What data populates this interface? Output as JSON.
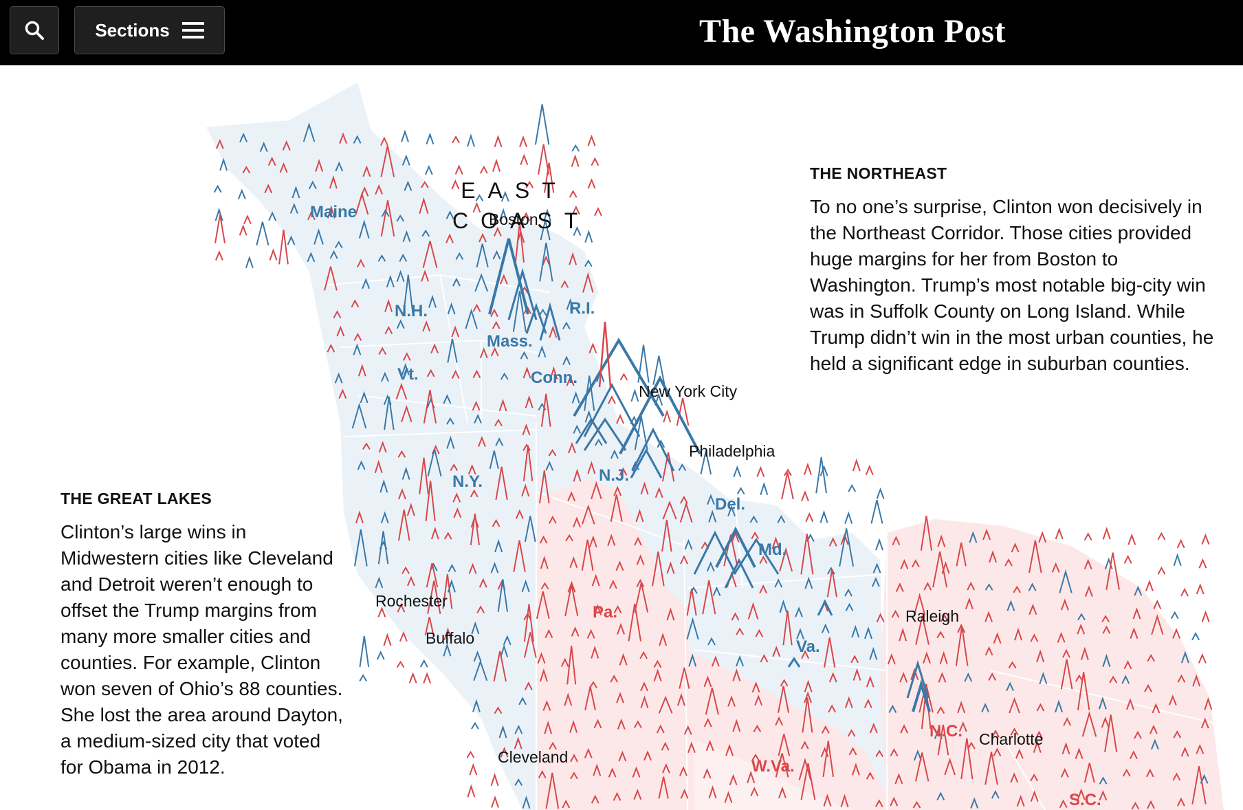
{
  "header": {
    "search_icon": "search-icon",
    "sections_label": "Sections",
    "menu_icon": "hamburger-menu-icon",
    "masthead": "The Washington Post"
  },
  "map": {
    "region_title_line1": "EAST",
    "region_title_line2": "COAST",
    "colors": {
      "clinton": "#3a78a8",
      "trump": "#d8474a",
      "clinton_fill": "#eaf2f8",
      "trump_fill": "#fce8e8",
      "border": "#ffffff"
    },
    "states": [
      {
        "key": "maine",
        "label": "Maine",
        "party": "clinton"
      },
      {
        "key": "nh",
        "label": "N.H.",
        "party": "clinton"
      },
      {
        "key": "vt",
        "label": "Vt.",
        "party": "clinton"
      },
      {
        "key": "mass",
        "label": "Mass.",
        "party": "clinton"
      },
      {
        "key": "ri",
        "label": "R.I.",
        "party": "clinton"
      },
      {
        "key": "conn",
        "label": "Conn.",
        "party": "clinton"
      },
      {
        "key": "ny",
        "label": "N.Y.",
        "party": "clinton"
      },
      {
        "key": "nj",
        "label": "N.J.",
        "party": "clinton"
      },
      {
        "key": "del",
        "label": "Del.",
        "party": "clinton"
      },
      {
        "key": "md",
        "label": "Md.",
        "party": "clinton"
      },
      {
        "key": "pa",
        "label": "Pa.",
        "party": "trump"
      },
      {
        "key": "va",
        "label": "Va.",
        "party": "clinton"
      },
      {
        "key": "wva",
        "label": "W.Va.",
        "party": "trump"
      },
      {
        "key": "nc",
        "label": "N.C.",
        "party": "trump"
      },
      {
        "key": "sc",
        "label": "S.C.",
        "party": "trump"
      }
    ],
    "cities": [
      {
        "key": "boston",
        "label": "Boston"
      },
      {
        "key": "nyc",
        "label": "New York City"
      },
      {
        "key": "philly",
        "label": "Philadelphia"
      },
      {
        "key": "rochester",
        "label": "Rochester"
      },
      {
        "key": "buffalo",
        "label": "Buffalo"
      },
      {
        "key": "cleveland",
        "label": "Cleveland"
      },
      {
        "key": "raleigh",
        "label": "Raleigh"
      },
      {
        "key": "charlotte",
        "label": "Charlotte"
      }
    ]
  },
  "northeast": {
    "heading": "THE NORTHEAST",
    "body": "To no one’s surprise, Clinton won decisively in the Northeast Corridor. Those cities provided huge margins for her from Boston to Washington. Trump’s most notable big-city win was in Suffolk County on Long Island. While Trump didn’t win in the most urban counties, he held a significant edge in suburban counties."
  },
  "great_lakes": {
    "heading": "THE GREAT LAKES",
    "body": "Clinton’s large wins in Midwestern cities like Cleveland and Detroit weren’t enough to offset the Trump margins from many more smaller cities and counties. For example, Clinton won seven of Ohio’s 88 counties. She lost the area around Dayton, a medium-sized city that voted for Obama in 2012."
  }
}
